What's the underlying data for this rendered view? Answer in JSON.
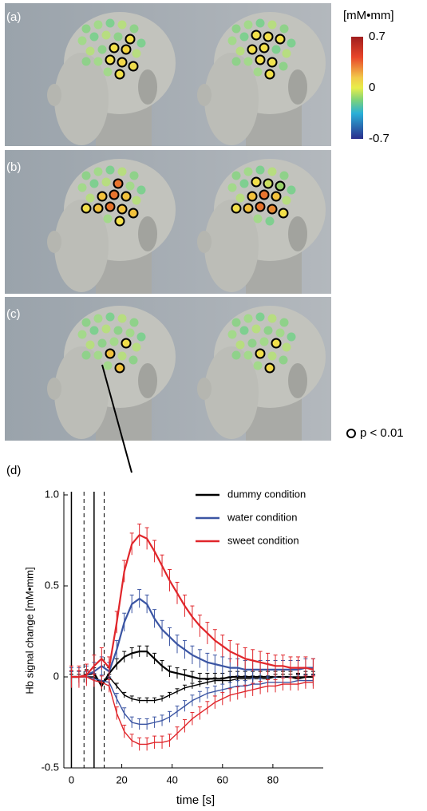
{
  "figure": {
    "panels": [
      {
        "label": "(a)"
      },
      {
        "label": "(b)"
      },
      {
        "label": "(c)"
      }
    ],
    "colorbar": {
      "unit": "[mM•mm]",
      "lim": [
        -0.7,
        0.7
      ],
      "ticks": [
        0.7,
        0,
        -0.7
      ]
    },
    "significance_legend": "p < 0.01"
  },
  "chart_data": {
    "type": "line",
    "panel_label": "(d)",
    "xlabel": "time [s]",
    "ylabel": "Hb signal change [mM•mm]",
    "xlim": [
      -3,
      100
    ],
    "xticks": [
      0,
      20,
      40,
      60,
      80
    ],
    "ylim": [
      -0.5,
      1.0
    ],
    "yticks": [
      {
        "value": 1.0,
        "label": "1.0"
      },
      0.5,
      0,
      -0.5
    ],
    "legend": "upper right",
    "vlines": [
      {
        "x": 0,
        "style": "solid"
      },
      {
        "x": 5,
        "style": "dashed"
      },
      {
        "x": 9,
        "style": "solid"
      },
      {
        "x": 13,
        "style": "dashed"
      }
    ],
    "x": [
      0,
      3,
      6,
      9,
      12,
      15,
      18,
      21,
      24,
      27,
      30,
      33,
      36,
      39,
      42,
      45,
      48,
      51,
      54,
      57,
      60,
      63,
      66,
      69,
      72,
      75,
      78,
      81,
      84,
      87,
      90,
      93,
      96
    ],
    "series": [
      {
        "name": "dummy condition",
        "color": "#000000",
        "curves": [
          {
            "values": [
              0,
              0,
              0.01,
              0.02,
              -0.05,
              0.02,
              0.07,
              0.11,
              0.13,
              0.14,
              0.14,
              0.1,
              0.06,
              0.03,
              0.02,
              0.01,
              0,
              -0.01,
              -0.01,
              -0.01,
              -0.01,
              0,
              0,
              0,
              0,
              0,
              0,
              0,
              0,
              0,
              -0.01,
              0,
              0
            ],
            "error": 0.03
          },
          {
            "values": [
              0,
              0,
              0,
              0,
              -0.04,
              0,
              -0.05,
              -0.1,
              -0.12,
              -0.13,
              -0.13,
              -0.13,
              -0.12,
              -0.1,
              -0.08,
              -0.06,
              -0.05,
              -0.04,
              -0.03,
              -0.02,
              -0.02,
              -0.02,
              -0.01,
              -0.01,
              -0.01,
              -0.01,
              -0.01,
              0,
              0,
              0,
              0,
              0,
              0
            ],
            "error": 0.015
          }
        ]
      },
      {
        "name": "water condition",
        "color": "#3b55a3",
        "curves": [
          {
            "values": [
              0,
              0,
              0.01,
              0.03,
              0.06,
              0.03,
              0.15,
              0.3,
              0.4,
              0.43,
              0.4,
              0.32,
              0.26,
              0.22,
              0.18,
              0.15,
              0.12,
              0.1,
              0.08,
              0.07,
              0.06,
              0.05,
              0.05,
              0.04,
              0.04,
              0.04,
              0.04,
              0.04,
              0.04,
              0.04,
              0.04,
              0.05,
              0.05
            ],
            "error": 0.05
          },
          {
            "values": [
              0,
              0,
              0,
              -0.01,
              -0.02,
              -0.03,
              -0.12,
              -0.2,
              -0.25,
              -0.26,
              -0.26,
              -0.25,
              -0.24,
              -0.22,
              -0.19,
              -0.16,
              -0.13,
              -0.11,
              -0.09,
              -0.08,
              -0.07,
              -0.06,
              -0.05,
              -0.05,
              -0.04,
              -0.04,
              -0.03,
              -0.03,
              -0.03,
              -0.03,
              -0.02,
              -0.02,
              -0.02
            ],
            "error": 0.03
          }
        ]
      },
      {
        "name": "sweet condition",
        "color": "#e0262b",
        "curves": [
          {
            "values": [
              0,
              0,
              0.01,
              0.06,
              0.1,
              0.05,
              0.3,
              0.58,
              0.73,
              0.78,
              0.76,
              0.69,
              0.61,
              0.53,
              0.46,
              0.39,
              0.33,
              0.28,
              0.24,
              0.2,
              0.17,
              0.14,
              0.12,
              0.1,
              0.09,
              0.08,
              0.07,
              0.06,
              0.06,
              0.05,
              0.05,
              0.05,
              0.04
            ],
            "error": 0.06
          },
          {
            "values": [
              0,
              0,
              0,
              -0.02,
              -0.03,
              -0.05,
              -0.2,
              -0.3,
              -0.35,
              -0.37,
              -0.37,
              -0.36,
              -0.36,
              -0.35,
              -0.31,
              -0.27,
              -0.23,
              -0.2,
              -0.17,
              -0.14,
              -0.12,
              -0.1,
              -0.09,
              -0.08,
              -0.07,
              -0.06,
              -0.05,
              -0.05,
              -0.04,
              -0.04,
              -0.04,
              -0.03,
              -0.03
            ],
            "error": 0.035
          }
        ]
      }
    ]
  }
}
